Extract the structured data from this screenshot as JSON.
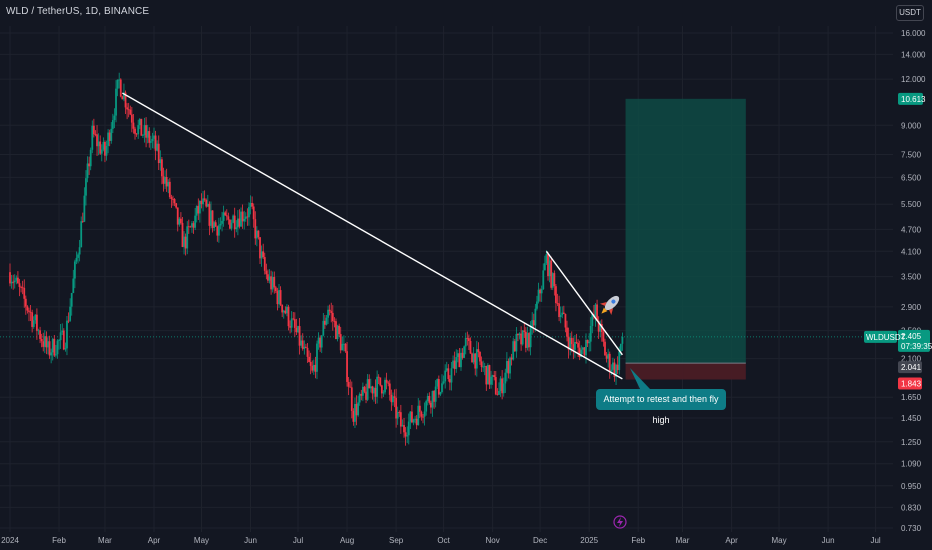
{
  "header": {
    "title": "WLD / TetherUS, 1D, BINANCE"
  },
  "currency_button": "USDT",
  "symbol_tag": "WLDUSDT",
  "callout_text": "Attempt to retest and then fly high",
  "price_tags": {
    "target": "10.613",
    "current": "2.405",
    "countdown": "07:39:35",
    "entry": "2.041",
    "stop": "1.843"
  },
  "colors": {
    "background": "#131722",
    "up": "#089981",
    "down": "#f23645",
    "target_zone": "#0e4a44",
    "stop_zone": "#4a1c25"
  },
  "chart_data": {
    "type": "candlestick",
    "title": "WLD / TetherUS, 1D, BINANCE",
    "y_scale": "log",
    "ylim": [
      0.7,
      18.0
    ],
    "y_ticks": [
      "16.000",
      "14.000",
      "12.000",
      "9.000",
      "7.500",
      "6.500",
      "5.500",
      "4.700",
      "4.100",
      "3.500",
      "2.900",
      "2.500",
      "2.100",
      "1.650",
      "1.450",
      "1.250",
      "1.090",
      "0.950",
      "0.830",
      "0.730"
    ],
    "x_ticks": [
      "2024",
      "Feb",
      "Mar",
      "Apr",
      "May",
      "Jun",
      "Jul",
      "Aug",
      "Sep",
      "Oct",
      "Nov",
      "Dec",
      "2025",
      "Feb",
      "Mar",
      "Apr",
      "May",
      "Jun",
      "Jul"
    ],
    "price_path": [
      [
        "2024-01-01",
        3.6
      ],
      [
        "2024-01-12",
        2.9
      ],
      [
        "2024-01-25",
        2.2
      ],
      [
        "2024-02-05",
        2.4
      ],
      [
        "2024-02-15",
        4.8
      ],
      [
        "2024-02-22",
        8.5
      ],
      [
        "2024-03-01",
        7.5
      ],
      [
        "2024-03-10",
        11.8
      ],
      [
        "2024-03-20",
        9.0
      ],
      [
        "2024-04-01",
        8.0
      ],
      [
        "2024-04-10",
        6.0
      ],
      [
        "2024-04-20",
        4.3
      ],
      [
        "2024-05-01",
        5.5
      ],
      [
        "2024-05-10",
        4.8
      ],
      [
        "2024-05-20",
        5.0
      ],
      [
        "2024-06-01",
        5.3
      ],
      [
        "2024-06-10",
        3.6
      ],
      [
        "2024-06-20",
        3.0
      ],
      [
        "2024-07-01",
        2.4
      ],
      [
        "2024-07-10",
        1.9
      ],
      [
        "2024-07-20",
        2.9
      ],
      [
        "2024-07-30",
        2.2
      ],
      [
        "2024-08-05",
        1.5
      ],
      [
        "2024-08-15",
        1.75
      ],
      [
        "2024-08-25",
        1.8
      ],
      [
        "2024-09-05",
        1.35
      ],
      [
        "2024-09-15",
        1.5
      ],
      [
        "2024-09-25",
        1.7
      ],
      [
        "2024-10-05",
        1.9
      ],
      [
        "2024-10-15",
        2.3
      ],
      [
        "2024-10-25",
        2.0
      ],
      [
        "2024-11-05",
        1.7
      ],
      [
        "2024-11-15",
        2.3
      ],
      [
        "2024-11-25",
        2.4
      ],
      [
        "2024-12-05",
        3.9
      ],
      [
        "2024-12-12",
        3.0
      ],
      [
        "2024-12-20",
        2.3
      ],
      [
        "2024-12-28",
        2.2
      ],
      [
        "2025-01-05",
        2.8
      ],
      [
        "2025-01-12",
        2.1
      ],
      [
        "2025-01-18",
        1.95
      ],
      [
        "2025-01-22",
        2.405
      ]
    ],
    "trendlines": [
      {
        "from": [
          "2024-03-12",
          11.0
        ],
        "to": [
          "2025-01-22",
          1.85
        ]
      },
      {
        "from": [
          "2024-12-05",
          4.1
        ],
        "to": [
          "2025-01-22",
          2.15
        ]
      }
    ],
    "long_position": {
      "start": "2025-01-24",
      "end": "2025-04-10",
      "entry": 2.041,
      "target": 10.613,
      "stop": 1.843
    },
    "current_price": 2.405
  }
}
